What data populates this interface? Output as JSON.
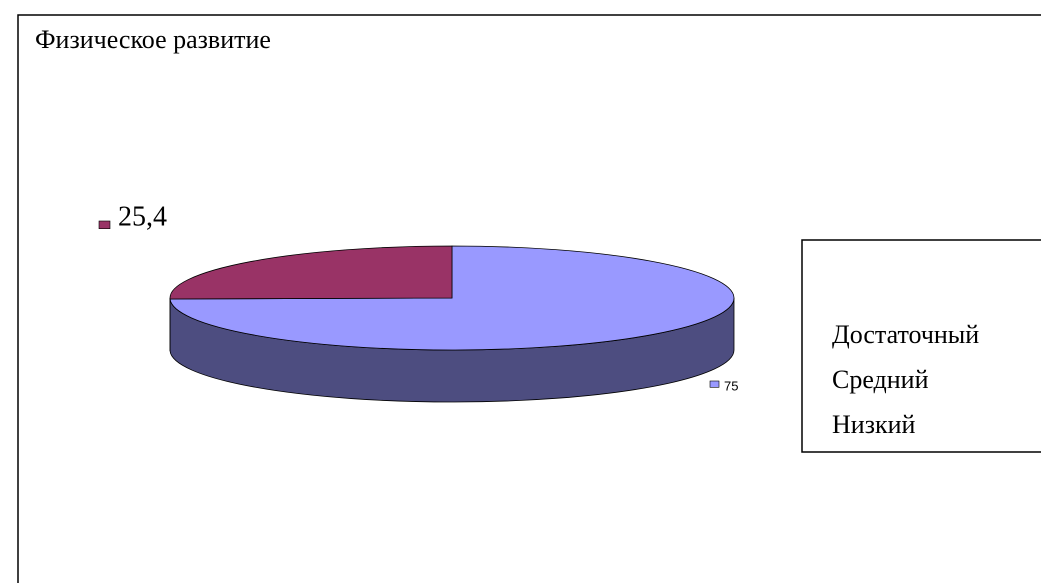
{
  "chart_data": {
    "type": "pie",
    "title": "Физическое развитие",
    "categories": [
      "Достаточный",
      "Средний",
      "Низкий"
    ],
    "values": [
      75,
      25.4,
      null
    ],
    "value_labels": [
      "75",
      "25,4",
      null
    ],
    "colors": [
      "#9999ff",
      "#993366",
      "#ffffcc"
    ],
    "side_colors": [
      "#4d4d80",
      "#4c1a33",
      "#80806a"
    ]
  }
}
